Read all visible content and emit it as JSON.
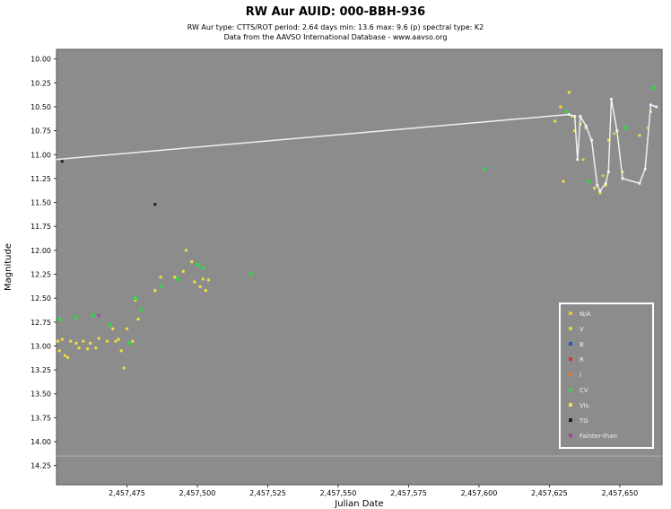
{
  "title": "RW Aur   AUID: 000-BBH-936",
  "subtitle": "RW Aur   type: CTTS/ROT   period: 2.64 days   min: 13.6   max: 9.6 (p)   spectral type: K2",
  "source_line": "Data from the AAVSO International Database - www.aavso.org",
  "colors": {
    "plot_bg": "#8c8c8c",
    "fit_line": "#f0f0f0",
    "legend_border": "#ffffff"
  },
  "chart_data": {
    "type": "scatter",
    "title": "RW Aur   AUID: 000-BBH-936",
    "xlabel": "Julian Date",
    "ylabel": "Magnitude",
    "xlim": [
      2457450,
      2457665
    ],
    "ylim": [
      14.45,
      9.9
    ],
    "y_reversed": true,
    "grid": false,
    "legend_position": "bottom-right",
    "x_ticks": [
      2457475,
      2457500,
      2457525,
      2457550,
      2457575,
      2457600,
      2457625,
      2457650
    ],
    "x_tick_labels": [
      "2,457,475",
      "2,457,500",
      "2,457,525",
      "2,457,550",
      "2,457,575",
      "2,457,600",
      "2,457,625",
      "2,457,650"
    ],
    "y_ticks": [
      10.0,
      10.25,
      10.5,
      10.75,
      11.0,
      11.25,
      11.5,
      11.75,
      12.0,
      12.25,
      12.5,
      12.75,
      13.0,
      13.25,
      13.5,
      13.75,
      14.0,
      14.25
    ],
    "y_tick_labels": [
      "10.00",
      "10.25",
      "10.50",
      "10.75",
      "11.00",
      "11.25",
      "11.50",
      "11.75",
      "12.00",
      "12.25",
      "12.50",
      "12.75",
      "13.00",
      "13.25",
      "13.50",
      "13.75",
      "14.00",
      "14.25"
    ],
    "legend": [
      {
        "label": "N/A",
        "color": "#e8c23a"
      },
      {
        "label": "V",
        "color": "#c8d24a"
      },
      {
        "label": "B",
        "color": "#2a56c8"
      },
      {
        "label": "R",
        "color": "#cc3a2a"
      },
      {
        "label": "I",
        "color": "#e07a3a"
      },
      {
        "label": "CV",
        "color": "#3ad24a"
      },
      {
        "label": "Vis.",
        "color": "#f0e040"
      },
      {
        "label": "TG",
        "color": "#202020"
      },
      {
        "label": "Fainter-than",
        "color": "#a040a0"
      }
    ],
    "series": [
      {
        "name": "Vis.",
        "color": "#f0e040",
        "size": 3,
        "points": [
          [
            2457450.5,
            12.95
          ],
          [
            2457451,
            13.05
          ],
          [
            2457452,
            12.93
          ],
          [
            2457453,
            13.1
          ],
          [
            2457454,
            13.12
          ],
          [
            2457455,
            12.95
          ],
          [
            2457457,
            12.97
          ],
          [
            2457458,
            13.02
          ],
          [
            2457459.5,
            12.95
          ],
          [
            2457461,
            13.03
          ],
          [
            2457462,
            12.97
          ],
          [
            2457464,
            13.02
          ],
          [
            2457465,
            12.92
          ],
          [
            2457468,
            12.95
          ],
          [
            2457470,
            12.82
          ],
          [
            2457471,
            12.95
          ],
          [
            2457472,
            12.93
          ],
          [
            2457473,
            13.05
          ],
          [
            2457474,
            13.23
          ],
          [
            2457475,
            12.82
          ],
          [
            2457477,
            12.95
          ],
          [
            2457478,
            12.52
          ],
          [
            2457479,
            12.72
          ],
          [
            2457485,
            12.42
          ],
          [
            2457487,
            12.28
          ],
          [
            2457492,
            12.28
          ],
          [
            2457495,
            12.22
          ],
          [
            2457496,
            12.0
          ],
          [
            2457498,
            12.12
          ],
          [
            2457499,
            12.33
          ],
          [
            2457501,
            12.38
          ],
          [
            2457502,
            12.3
          ],
          [
            2457503,
            12.42
          ],
          [
            2457504,
            12.31
          ],
          [
            2457627,
            10.65
          ],
          [
            2457629,
            10.5
          ],
          [
            2457632,
            10.35
          ],
          [
            2457634,
            10.75
          ],
          [
            2457636,
            10.68
          ],
          [
            2457638,
            10.72
          ],
          [
            2457641,
            11.35
          ],
          [
            2457643,
            11.4
          ],
          [
            2457645,
            11.32
          ],
          [
            2457646,
            10.85
          ],
          [
            2457649,
            10.75
          ],
          [
            2457651,
            11.18
          ],
          [
            2457657,
            10.8
          ],
          [
            2457661,
            10.55
          ],
          [
            2457630,
            11.28
          ]
        ]
      },
      {
        "name": "V",
        "color": "#c8d24a",
        "size": 3,
        "points": [
          [
            2457633,
            10.6
          ],
          [
            2457637,
            11.05
          ],
          [
            2457644,
            11.22
          ],
          [
            2457648,
            10.78
          ],
          [
            2457660,
            10.72
          ]
        ]
      },
      {
        "name": "CV",
        "color": "#3ad24a",
        "size": 4,
        "points": [
          [
            2457451,
            12.72
          ],
          [
            2457457,
            12.7
          ],
          [
            2457463,
            12.68
          ],
          [
            2457469,
            12.78
          ],
          [
            2457476,
            12.97
          ],
          [
            2457478,
            12.5
          ],
          [
            2457480,
            12.62
          ],
          [
            2457487,
            12.38
          ],
          [
            2457493,
            12.3
          ],
          [
            2457500,
            12.15
          ],
          [
            2457502,
            12.18
          ],
          [
            2457519,
            12.25
          ],
          [
            2457602,
            11.15
          ],
          [
            2457631,
            10.55
          ],
          [
            2457639,
            11.28
          ],
          [
            2457652,
            10.72
          ],
          [
            2457662,
            10.3
          ]
        ]
      },
      {
        "name": "TG",
        "color": "#202020",
        "size": 3,
        "points": [
          [
            2457452,
            11.07
          ],
          [
            2457485,
            11.52
          ]
        ]
      },
      {
        "name": "Fainter-than",
        "color": "#a040a0",
        "size": 3,
        "points": [
          [
            2457465,
            12.68
          ]
        ]
      }
    ],
    "fit_line": {
      "color": "#f0f0f0",
      "points": [
        [
          2457450,
          11.05
        ],
        [
          2457632,
          10.58
        ],
        [
          2457634,
          10.6
        ],
        [
          2457635,
          11.05
        ],
        [
          2457636,
          10.6
        ],
        [
          2457638,
          10.7
        ],
        [
          2457640,
          10.85
        ],
        [
          2457642,
          11.32
        ],
        [
          2457643,
          11.38
        ],
        [
          2457645,
          11.3
        ],
        [
          2457646,
          11.18
        ],
        [
          2457647,
          10.42
        ],
        [
          2457649,
          10.75
        ],
        [
          2457651,
          11.25
        ],
        [
          2457657,
          11.3
        ],
        [
          2457659,
          11.15
        ],
        [
          2457661,
          10.48
        ],
        [
          2457663,
          10.5
        ]
      ]
    },
    "faint_limit_line": {
      "y": 14.15,
      "color": "#b0b0b0"
    }
  }
}
